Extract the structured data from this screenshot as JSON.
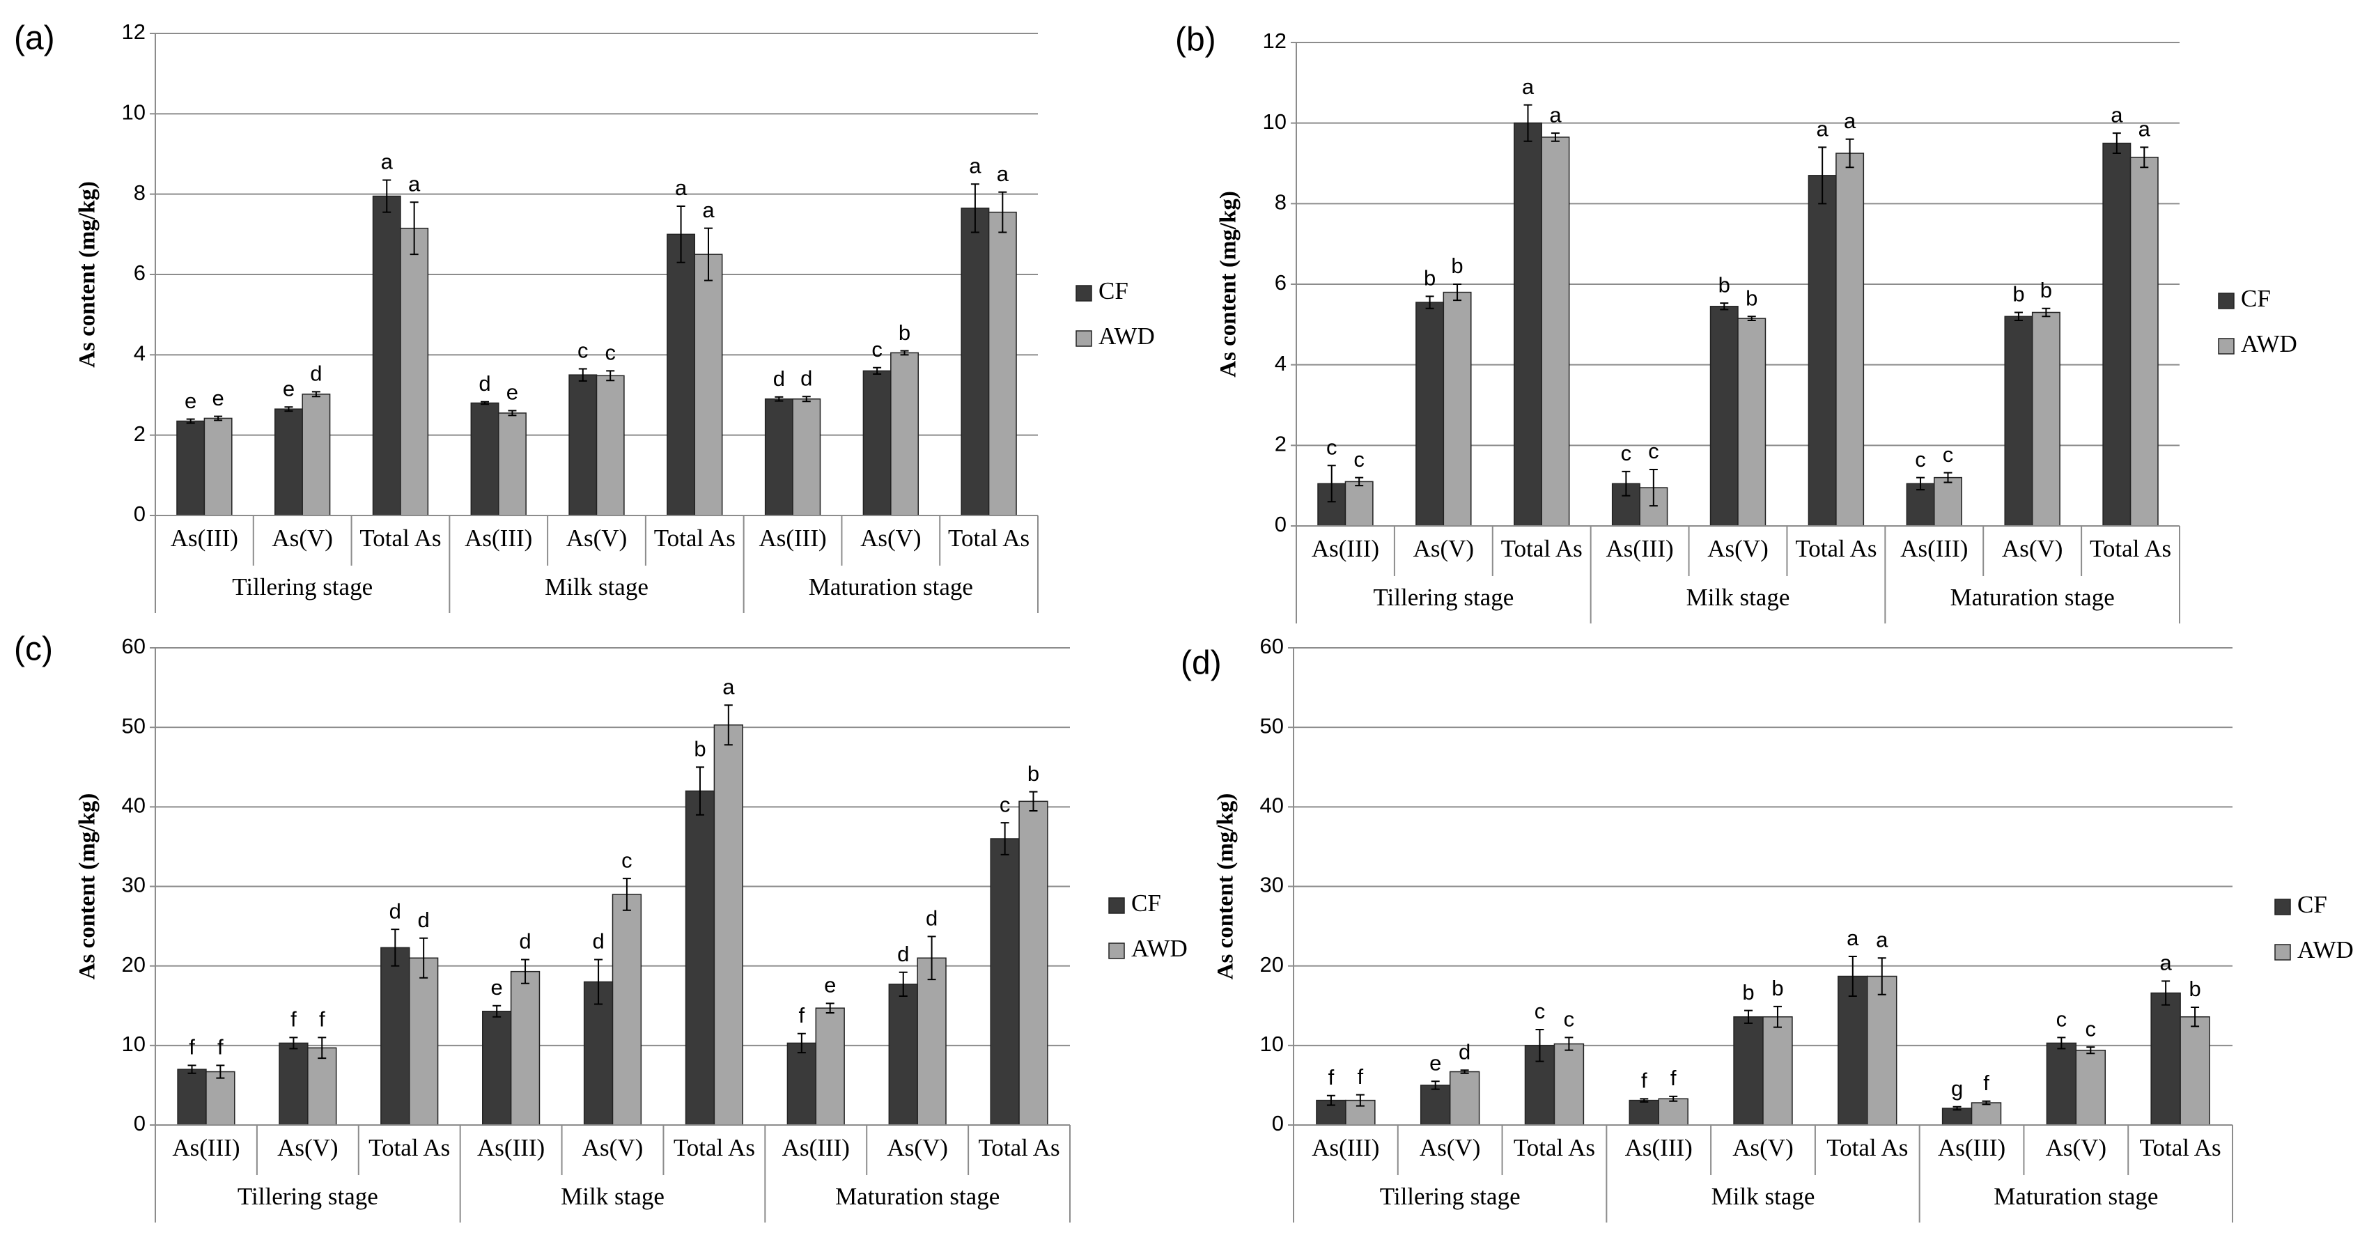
{
  "chart_data": [
    {
      "type": "bar",
      "panel": "(a)",
      "y_label": "As content (mg/kg)",
      "ylim": [
        0,
        12
      ],
      "yticks": [
        0,
        2,
        4,
        6,
        8,
        10,
        12
      ],
      "grid": true,
      "groups": [
        {
          "name": "Tillering stage",
          "categories": [
            "As(III)",
            "As(V)",
            "Total As"
          ]
        },
        {
          "name": "Milk stage",
          "categories": [
            "As(III)",
            "As(V)",
            "Total As"
          ]
        },
        {
          "name": "Maturation stage",
          "categories": [
            "As(III)",
            "As(V)",
            "Total As"
          ]
        }
      ],
      "series": [
        {
          "name": "CF",
          "color": "#3a3a3a",
          "values": [
            2.35,
            2.65,
            7.95,
            2.8,
            3.5,
            7.0,
            2.9,
            3.6,
            7.65
          ],
          "errors": [
            0.05,
            0.05,
            0.4,
            0.03,
            0.15,
            0.7,
            0.05,
            0.08,
            0.6
          ],
          "letters": [
            "e",
            "e",
            "a",
            "d",
            "c",
            "a",
            "d",
            "c",
            "a"
          ]
        },
        {
          "name": "AWD",
          "color": "#a6a6a6",
          "values": [
            2.42,
            3.02,
            7.15,
            2.55,
            3.48,
            6.5,
            2.9,
            4.05,
            7.55
          ],
          "errors": [
            0.05,
            0.06,
            0.65,
            0.06,
            0.12,
            0.65,
            0.06,
            0.05,
            0.5
          ],
          "letters": [
            "e",
            "d",
            "a",
            "e",
            "c",
            "a",
            "d",
            "b",
            "a"
          ]
        }
      ]
    },
    {
      "type": "bar",
      "panel": "(b)",
      "y_label": "As content (mg/kg)",
      "ylim": [
        0,
        12
      ],
      "yticks": [
        0,
        2,
        4,
        6,
        8,
        10,
        12
      ],
      "grid": true,
      "groups": [
        {
          "name": "Tillering stage",
          "categories": [
            "As(III)",
            "As(V)",
            "Total As"
          ]
        },
        {
          "name": "Milk stage",
          "categories": [
            "As(III)",
            "As(V)",
            "Total As"
          ]
        },
        {
          "name": "Maturation stage",
          "categories": [
            "As(III)",
            "As(V)",
            "Total As"
          ]
        }
      ],
      "series": [
        {
          "name": "CF",
          "color": "#3a3a3a",
          "values": [
            1.05,
            5.55,
            10.0,
            1.05,
            5.45,
            8.7,
            1.05,
            5.2,
            9.5
          ],
          "errors": [
            0.45,
            0.15,
            0.45,
            0.3,
            0.08,
            0.7,
            0.15,
            0.1,
            0.25
          ],
          "letters": [
            "c",
            "b",
            "a",
            "c",
            "b",
            "a",
            "c",
            "b",
            "a"
          ]
        },
        {
          "name": "AWD",
          "color": "#a6a6a6",
          "values": [
            1.1,
            5.8,
            9.65,
            0.95,
            5.15,
            9.25,
            1.2,
            5.3,
            9.15
          ],
          "errors": [
            0.1,
            0.2,
            0.1,
            0.45,
            0.05,
            0.35,
            0.12,
            0.1,
            0.25
          ],
          "letters": [
            "c",
            "b",
            "a",
            "c",
            "b",
            "a",
            "c",
            "b",
            "a"
          ]
        }
      ]
    },
    {
      "type": "bar",
      "panel": "(c)",
      "y_label": "As content (mg/kg)",
      "ylim": [
        0,
        60
      ],
      "yticks": [
        0,
        10,
        20,
        30,
        40,
        50,
        60
      ],
      "grid": true,
      "groups": [
        {
          "name": "Tillering stage",
          "categories": [
            "As(III)",
            "As(V)",
            "Total As"
          ]
        },
        {
          "name": "Milk stage",
          "categories": [
            "As(III)",
            "As(V)",
            "Total As"
          ]
        },
        {
          "name": "Maturation stage",
          "categories": [
            "As(III)",
            "As(V)",
            "Total As"
          ]
        }
      ],
      "series": [
        {
          "name": "CF",
          "color": "#3a3a3a",
          "values": [
            7.0,
            10.3,
            22.3,
            14.3,
            18.0,
            42.0,
            10.3,
            17.7,
            36.0
          ],
          "errors": [
            0.5,
            0.7,
            2.3,
            0.7,
            2.8,
            3.0,
            1.2,
            1.5,
            2.0
          ],
          "letters": [
            "f",
            "f",
            "d",
            "e",
            "d",
            "b",
            "f",
            "d",
            "c"
          ]
        },
        {
          "name": "AWD",
          "color": "#a6a6a6",
          "values": [
            6.7,
            9.7,
            21.0,
            19.3,
            29.0,
            50.3,
            14.7,
            21.0,
            40.7
          ],
          "errors": [
            0.8,
            1.3,
            2.5,
            1.5,
            2.0,
            2.5,
            0.6,
            2.7,
            1.2
          ],
          "letters": [
            "f",
            "f",
            "d",
            "d",
            "c",
            "a",
            "e",
            "d",
            "b"
          ]
        }
      ]
    },
    {
      "type": "bar",
      "panel": "(d)",
      "y_label": "As content (mg/kg)",
      "ylim": [
        0,
        60
      ],
      "yticks": [
        0,
        10,
        20,
        30,
        40,
        50,
        60
      ],
      "grid": true,
      "groups": [
        {
          "name": "Tillering stage",
          "categories": [
            "As(III)",
            "As(V)",
            "Total As"
          ]
        },
        {
          "name": "Milk stage",
          "categories": [
            "As(III)",
            "As(V)",
            "Total As"
          ]
        },
        {
          "name": "Maturation stage",
          "categories": [
            "As(III)",
            "As(V)",
            "Total As"
          ]
        }
      ],
      "series": [
        {
          "name": "CF",
          "color": "#3a3a3a",
          "values": [
            3.1,
            5.0,
            10.0,
            3.1,
            13.6,
            18.7,
            2.1,
            10.3,
            16.6
          ],
          "errors": [
            0.6,
            0.5,
            2.0,
            0.2,
            0.8,
            2.5,
            0.2,
            0.7,
            1.5
          ],
          "letters": [
            "f",
            "e",
            "c",
            "f",
            "b",
            "a",
            "g",
            "c",
            "a"
          ]
        },
        {
          "name": "AWD",
          "color": "#a6a6a6",
          "values": [
            3.1,
            6.7,
            10.2,
            3.3,
            13.6,
            18.7,
            2.8,
            9.4,
            13.6
          ],
          "errors": [
            0.7,
            0.2,
            0.8,
            0.3,
            1.3,
            2.3,
            0.2,
            0.4,
            1.2
          ],
          "letters": [
            "f",
            "d",
            "c",
            "f",
            "b",
            "a",
            "f",
            "c",
            "b"
          ]
        }
      ]
    }
  ]
}
